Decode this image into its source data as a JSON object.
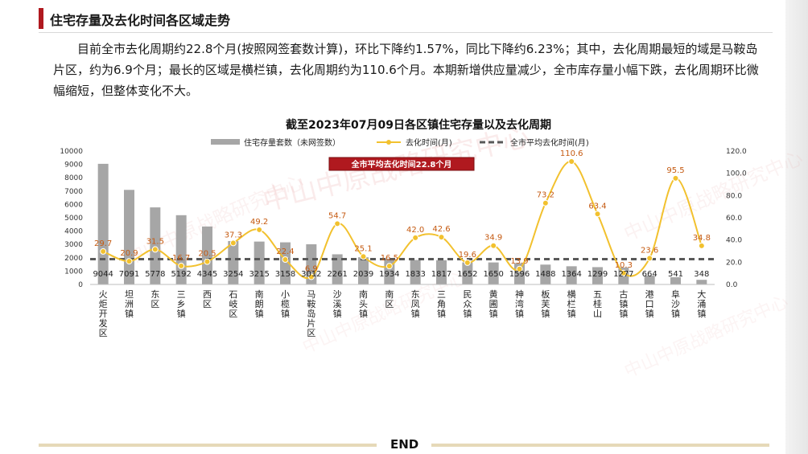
{
  "header": {
    "title": "住宅存量及去化时间各区域走势"
  },
  "paragraph": "目前全市去化周期约22.8个月(按照网签套数计算)，环比下降约1.57%，同比下降约6.23%；其中，去化周期最短的域是马鞍岛片区，约为6.9个月；最长的区域是横栏镇，去化周期约为110.6个月。本期新增供应量减少，全市库存量小幅下跌，去化周期环比微幅缩短，但整体变化不大。",
  "footer": {
    "end_label": "END"
  },
  "watermark": "中山中原战略研究中心",
  "colors": {
    "accent": "#b0191f",
    "bar": "#a6a6a6",
    "line": "#f2c12e",
    "avg": "#595959",
    "label": "#c55a11"
  },
  "chart_data": {
    "type": "bar",
    "title": "截至2023年07月09日各区镇住宅存量以及去化周期",
    "categories": [
      "火炬开发区",
      "坦洲镇",
      "东区",
      "三乡镇",
      "西区",
      "石岐区",
      "南朗镇",
      "小榄镇",
      "马鞍岛片区",
      "沙溪镇",
      "南头镇",
      "南区",
      "东凤镇",
      "三角镇",
      "民众镇",
      "黄圃镇",
      "神湾镇",
      "板芙镇",
      "横栏镇",
      "五桂山",
      "古镇镇",
      "港口镇",
      "阜沙镇",
      "大涌镇"
    ],
    "series": [
      {
        "name": "住宅存量套数（未网签数）",
        "type": "bar",
        "axis": "left",
        "values": [
          9044,
          7091,
          5778,
          5192,
          4345,
          3254,
          3215,
          3158,
          3012,
          2261,
          2039,
          1934,
          1833,
          1817,
          1652,
          1650,
          1596,
          1488,
          1364,
          1299,
          1277,
          664,
          541,
          348
        ]
      },
      {
        "name": "去化时间(月)",
        "type": "line",
        "axis": "right",
        "values": [
          29.7,
          20.9,
          31.5,
          16.7,
          20.5,
          37.3,
          49.2,
          22.4,
          6.9,
          54.7,
          25.1,
          16.5,
          42.0,
          42.6,
          19.6,
          34.9,
          13.9,
          73.2,
          110.6,
          63.4,
          10.3,
          23.6,
          95.5,
          34.8
        ]
      },
      {
        "name": "全市平均去化时间(月)",
        "type": "line",
        "axis": "right",
        "value": 22.8
      }
    ],
    "line_labels": [
      "29.7",
      "20.9",
      "31.5",
      "16.7",
      "20.5",
      "37.3",
      "49.2",
      "22.4",
      "6.9",
      "54.7",
      "25.1",
      "16.5",
      "42.0",
      "42.6",
      "19.6",
      "34.9",
      "13.9",
      "73.2",
      "110.6",
      "63.4",
      "10.3",
      "23.6",
      "95.5",
      "34.8"
    ],
    "annotation": "全市平均去化时间22.8个月",
    "y_left": {
      "min": 0,
      "max": 10000,
      "ticks": [
        "0",
        "1000",
        "2000",
        "3000",
        "4000",
        "5000",
        "6000",
        "7000",
        "8000",
        "9000",
        "10000"
      ]
    },
    "y_right": {
      "min": 0,
      "max": 120,
      "ticks": [
        "0.0",
        "20.0",
        "40.0",
        "60.0",
        "80.0",
        "100.0",
        "120.0"
      ]
    },
    "legend": "top",
    "grid": false
  }
}
